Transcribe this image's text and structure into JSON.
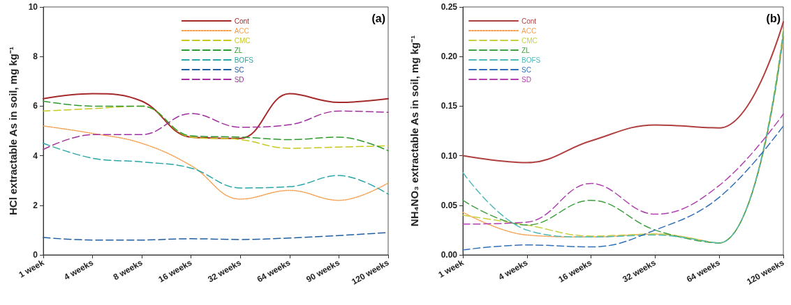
{
  "chart_data": [
    {
      "type": "line",
      "categories": [
        "1 week",
        "4 weeks",
        "8 weeks",
        "16 weeks",
        "32 weeks",
        "64 weeks",
        "90 weeks",
        "120 weeks"
      ],
      "ylabel": "HCl extractable As in soil, mg kg⁻¹",
      "ylim": [
        0,
        10
      ],
      "yticks": [
        0,
        2,
        4,
        6,
        8,
        10
      ],
      "annotations": [
        "(a)"
      ],
      "legend": "top",
      "grid": false,
      "marker": "none",
      "series": [
        {
          "name": "Cont",
          "color": "#a52a2a",
          "line_style": "solid",
          "values": [
            6.3,
            6.5,
            6.2,
            4.75,
            4.7,
            6.5,
            6.15,
            6.3
          ]
        },
        {
          "name": "ACC",
          "color": "#f5a050",
          "line_style": "dotted",
          "values": [
            5.2,
            4.9,
            4.5,
            3.6,
            2.25,
            2.6,
            2.2,
            2.9
          ]
        },
        {
          "name": "CMC",
          "color": "#c8c820",
          "line_style": "dashed",
          "values": [
            5.8,
            5.9,
            6.0,
            4.75,
            4.65,
            4.3,
            4.35,
            4.4
          ]
        },
        {
          "name": "ZL",
          "color": "#2e9a2e",
          "line_style": "dashed",
          "values": [
            6.2,
            6.0,
            6.0,
            4.8,
            4.75,
            4.65,
            4.75,
            4.2
          ]
        },
        {
          "name": "BOFS",
          "color": "#2aa6a6",
          "line_style": "dashed",
          "values": [
            4.5,
            3.9,
            3.75,
            3.5,
            2.7,
            2.75,
            3.2,
            2.45
          ]
        },
        {
          "name": "SC",
          "color": "#1f5fa0",
          "line_style": "dashed",
          "values": [
            0.7,
            0.6,
            0.6,
            0.65,
            0.62,
            0.68,
            0.78,
            0.9
          ]
        },
        {
          "name": "SD",
          "color": "#a030a0",
          "line_style": "dashed",
          "values": [
            4.25,
            4.85,
            4.85,
            5.7,
            5.15,
            5.25,
            5.8,
            5.75
          ]
        }
      ]
    },
    {
      "type": "line",
      "categories": [
        "1 week",
        "4 weeks",
        "16 weeks",
        "32 weeks",
        "64 weeks",
        "120 weeks"
      ],
      "ylabel": "NH₄NO₃ extractable As in soil, mg kg⁻¹",
      "ylim": [
        0,
        0.25
      ],
      "yticks": [
        {
          "value": 0,
          "label": "0.00"
        },
        {
          "value": 0.05,
          "label": "0.05"
        },
        {
          "value": 0.1,
          "label": "0.10"
        },
        {
          "value": 0.15,
          "label": "0.15"
        },
        {
          "value": 0.2,
          "label": "0.20"
        },
        {
          "value": 0.25,
          "label": "0.25"
        }
      ],
      "annotations": [
        "(b)"
      ],
      "legend": "top left",
      "grid": false,
      "marker": "none",
      "series": [
        {
          "name": "Cont",
          "color": "#b04040",
          "line_style": "solid",
          "values": [
            0.1,
            0.093,
            0.115,
            0.131,
            0.128,
            0.235
          ]
        },
        {
          "name": "ACC",
          "color": "#f5a050",
          "line_style": "dotted",
          "values": [
            0.043,
            0.02,
            0.018,
            0.021,
            0.012,
            0.22
          ]
        },
        {
          "name": "CMC",
          "color": "#c8d040",
          "line_style": "dashed",
          "values": [
            0.04,
            0.03,
            0.019,
            0.021,
            0.012,
            0.228
          ]
        },
        {
          "name": "ZL",
          "color": "#40a040",
          "line_style": "dashed",
          "values": [
            0.055,
            0.03,
            0.055,
            0.025,
            0.012,
            0.222
          ]
        },
        {
          "name": "BOFS",
          "color": "#50b8b8",
          "line_style": "dashed",
          "values": [
            0.083,
            0.025,
            0.018,
            0.02,
            0.012,
            0.225
          ]
        },
        {
          "name": "SC",
          "color": "#3070b8",
          "line_style": "dashed",
          "values": [
            0.005,
            0.01,
            0.008,
            0.025,
            0.058,
            0.13
          ]
        },
        {
          "name": "SD",
          "color": "#b040b0",
          "line_style": "dashed",
          "values": [
            0.031,
            0.033,
            0.072,
            0.041,
            0.07,
            0.142
          ]
        }
      ]
    }
  ]
}
